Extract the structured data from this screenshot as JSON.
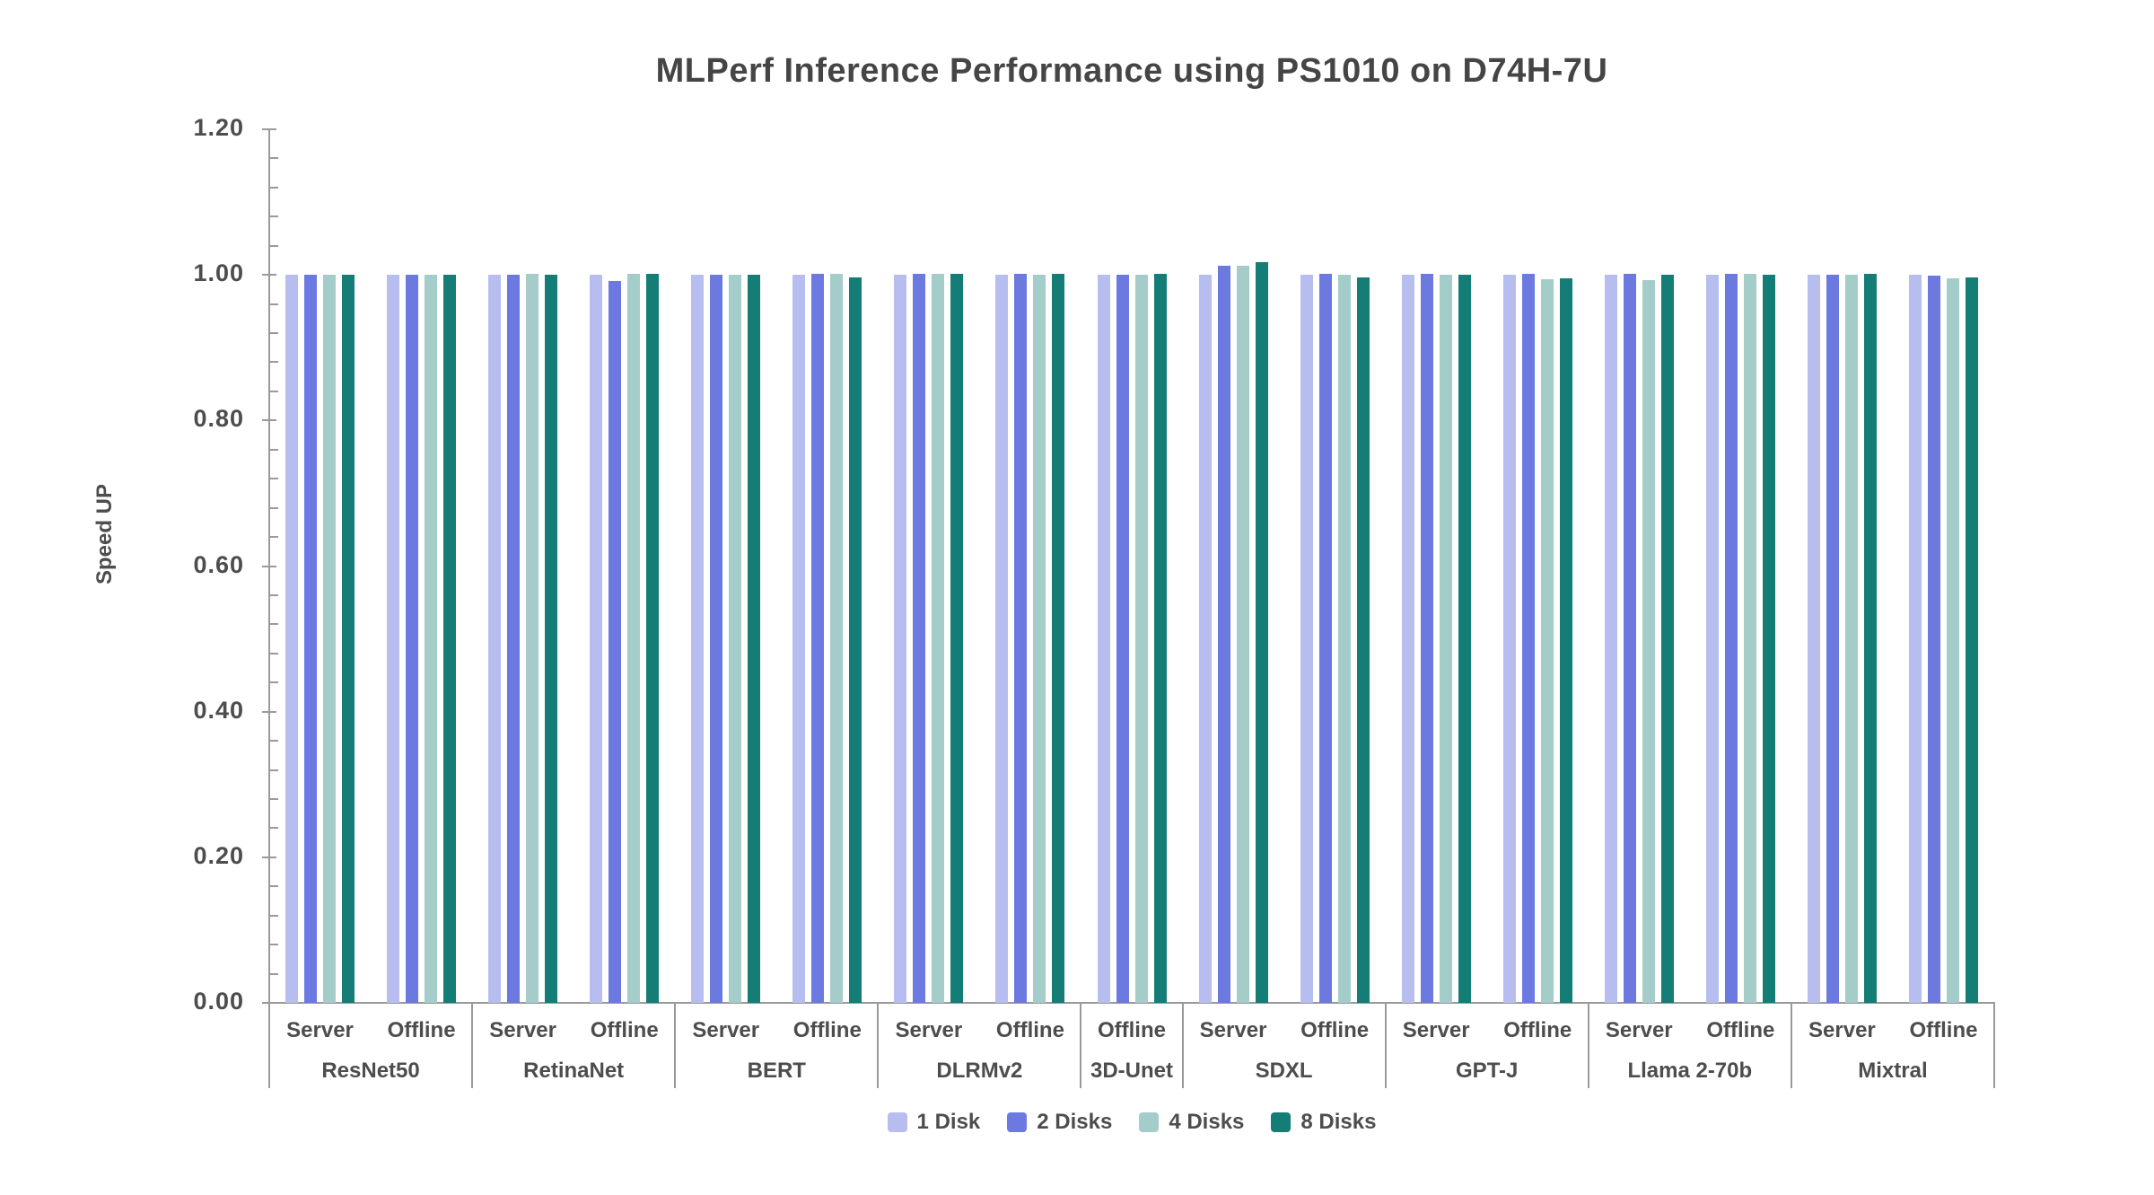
{
  "colors": {
    "background": "#ffffff",
    "text": "#4d4d4d",
    "title_text": "#454545",
    "axis": "#9a9a9a"
  },
  "chart_data": {
    "type": "grouped-bar",
    "title": "MLPerf Inference Performance using PS1010 on D74H-7U",
    "xlabel": "",
    "ylabel": "Speed UP",
    "ylim": [
      0,
      1.2
    ],
    "ytick_major_step": 0.2,
    "ytick_minor_step": 0.04,
    "ytick_decimals": 2,
    "grid": false,
    "legend_position": "bottom-center",
    "series": [
      {
        "name": "1 Disk",
        "color": "#b7beef"
      },
      {
        "name": "2 Disks",
        "color": "#6b79e1"
      },
      {
        "name": "4 Disks",
        "color": "#a4ccc8"
      },
      {
        "name": "8 Disks",
        "color": "#147d76"
      }
    ],
    "groups": [
      {
        "name": "ResNet50",
        "scenarios": [
          {
            "label": "Server",
            "values": [
              1.0,
              1.0,
              1.0,
              1.0
            ]
          },
          {
            "label": "Offline",
            "values": [
              1.0,
              1.0,
              1.0,
              1.0
            ]
          }
        ]
      },
      {
        "name": "RetinaNet",
        "scenarios": [
          {
            "label": "Server",
            "values": [
              1.0,
              1.0,
              1.001,
              1.0
            ]
          },
          {
            "label": "Offline",
            "values": [
              1.0,
              0.992,
              1.001,
              1.001
            ]
          }
        ]
      },
      {
        "name": "BERT",
        "scenarios": [
          {
            "label": "Server",
            "values": [
              1.0,
              1.0,
              1.0,
              1.0
            ]
          },
          {
            "label": "Offline",
            "values": [
              1.0,
              1.001,
              1.001,
              0.997
            ]
          }
        ]
      },
      {
        "name": "DLRMv2",
        "scenarios": [
          {
            "label": "Server",
            "values": [
              1.0,
              1.001,
              1.001,
              1.001
            ]
          },
          {
            "label": "Offline",
            "values": [
              1.0,
              1.001,
              1.0,
              1.001
            ]
          }
        ]
      },
      {
        "name": "3D-Unet",
        "scenarios": [
          {
            "label": "Offline",
            "values": [
              1.0,
              1.0,
              1.0,
              1.001
            ]
          }
        ]
      },
      {
        "name": "SDXL",
        "scenarios": [
          {
            "label": "Server",
            "values": [
              1.0,
              1.012,
              1.012,
              1.017
            ]
          },
          {
            "label": "Offline",
            "values": [
              1.0,
              1.002,
              1.0,
              0.997
            ]
          }
        ]
      },
      {
        "name": "GPT-J",
        "scenarios": [
          {
            "label": "Server",
            "values": [
              1.0,
              1.001,
              1.0,
              1.0
            ]
          },
          {
            "label": "Offline",
            "values": [
              1.0,
              1.001,
              0.994,
              0.995
            ]
          }
        ]
      },
      {
        "name": "Llama 2-70b",
        "scenarios": [
          {
            "label": "Server",
            "values": [
              1.0,
              1.001,
              0.993,
              1.0
            ]
          },
          {
            "label": "Offline",
            "values": [
              1.0,
              1.001,
              1.001,
              1.0
            ]
          }
        ]
      },
      {
        "name": "Mixtral",
        "scenarios": [
          {
            "label": "Server",
            "values": [
              1.0,
              1.0,
              1.0,
              1.001
            ]
          },
          {
            "label": "Offline",
            "values": [
              1.0,
              0.999,
              0.995,
              0.996
            ]
          }
        ]
      }
    ]
  }
}
